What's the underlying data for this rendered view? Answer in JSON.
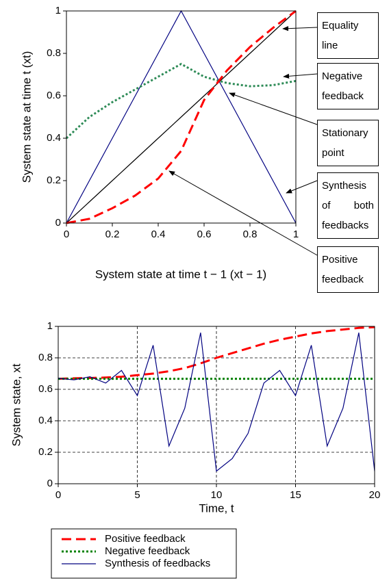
{
  "chart_data": [
    {
      "type": "line",
      "x_label": "System state at time t − 1 (xt − 1)",
      "y_label": "System state at time t (xt)",
      "x": [
        0,
        0.1,
        0.2,
        0.3,
        0.4,
        0.5,
        0.6,
        0.7,
        0.8,
        0.9,
        1
      ],
      "series": [
        {
          "color": "#000000",
          "style": "solid",
          "values": [
            0,
            0.1,
            0.2,
            0.3,
            0.4,
            0.5,
            0.6,
            0.7,
            0.8,
            0.9,
            1
          ]
        },
        {
          "color": "#000080",
          "style": "solid",
          "values": [
            0,
            0.2,
            0.4,
            0.6,
            0.8,
            1,
            0.8,
            0.6,
            0.4,
            0.2,
            0
          ]
        },
        {
          "color": "#2e8b57",
          "style": "dotted",
          "values": [
            0.4,
            0.5,
            0.57,
            0.63,
            0.69,
            0.75,
            0.69,
            0.66,
            0.645,
            0.65,
            0.67
          ]
        },
        {
          "color": "#ff0000",
          "style": "dashed",
          "values": [
            0,
            0.02,
            0.07,
            0.13,
            0.21,
            0.34,
            0.58,
            0.72,
            0.83,
            0.92,
            1
          ]
        }
      ],
      "annotations": [
        "Equality line",
        "Negative feedback",
        "Stationary point",
        "Synthesis of both feedbacks",
        "Positive feedback"
      ],
      "xlim": [
        0,
        1
      ],
      "xticks": [
        0,
        0.2,
        0.4,
        0.6,
        0.8,
        1
      ],
      "ylim": [
        0,
        1
      ],
      "yticks": [
        0,
        0.2,
        0.4,
        0.6,
        0.8,
        1
      ],
      "grid": false
    },
    {
      "type": "line",
      "x_label": "Time, t",
      "y_label": "System state, xt",
      "x": [
        0,
        1,
        2,
        3,
        4,
        5,
        6,
        7,
        8,
        9,
        10,
        11,
        12,
        13,
        14,
        15,
        16,
        17,
        18,
        19,
        20
      ],
      "series": [
        {
          "name": "Positive feedback",
          "color": "#ff0000",
          "style": "dashed",
          "values": [
            0.667,
            0.67,
            0.672,
            0.675,
            0.68,
            0.69,
            0.7,
            0.715,
            0.735,
            0.765,
            0.8,
            0.83,
            0.86,
            0.89,
            0.915,
            0.935,
            0.955,
            0.97,
            0.98,
            0.99,
            0.995
          ]
        },
        {
          "name": "Negative feedback",
          "color": "#008000",
          "style": "dotted",
          "values": [
            0.667,
            0.667,
            0.667,
            0.667,
            0.667,
            0.667,
            0.667,
            0.667,
            0.667,
            0.667,
            0.667,
            0.667,
            0.667,
            0.667,
            0.667,
            0.667,
            0.667,
            0.667,
            0.667,
            0.667,
            0.667
          ]
        },
        {
          "name": "Synthesis of feedbacks",
          "color": "#000080",
          "style": "solid",
          "values": [
            0.67,
            0.66,
            0.68,
            0.64,
            0.72,
            0.56,
            0.88,
            0.24,
            0.48,
            0.96,
            0.08,
            0.16,
            0.32,
            0.64,
            0.72,
            0.56,
            0.88,
            0.24,
            0.48,
            0.96,
            0.08
          ]
        }
      ],
      "xlim": [
        0,
        20
      ],
      "xticks": [
        0,
        5,
        10,
        15,
        20
      ],
      "ylim": [
        0,
        1
      ],
      "yticks": [
        0,
        0.2,
        0.4,
        0.6,
        0.8,
        1
      ],
      "grid": true,
      "legend": "bottom"
    }
  ]
}
